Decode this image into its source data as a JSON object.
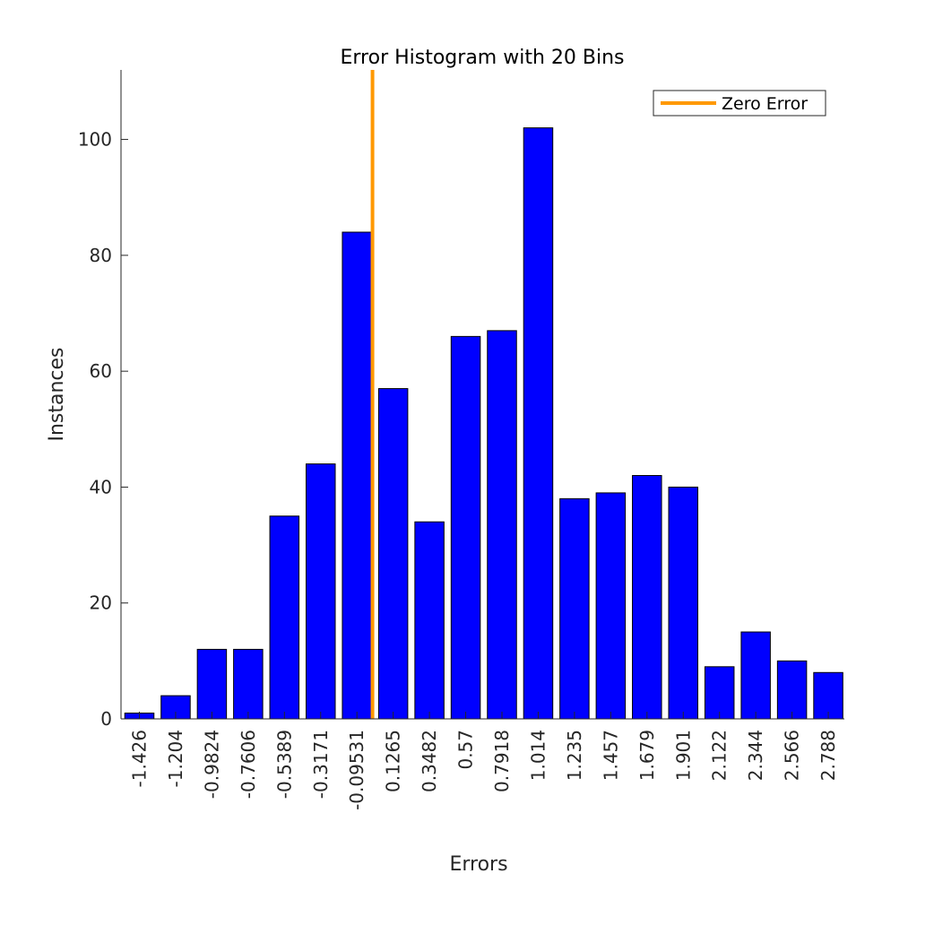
{
  "chart_data": {
    "type": "bar",
    "title": "Error Histogram with 20 Bins",
    "xlabel": "Errors",
    "ylabel": "Instances",
    "categories": [
      "-1.426",
      "-1.204",
      "-0.9824",
      "-0.7606",
      "-0.5389",
      "-0.3171",
      "-0.09531",
      "0.1265",
      "0.3482",
      "0.57",
      "0.7918",
      "1.014",
      "1.235",
      "1.457",
      "1.679",
      "1.901",
      "2.122",
      "2.344",
      "2.566",
      "2.788"
    ],
    "values": [
      1,
      4,
      12,
      12,
      35,
      44,
      84,
      57,
      34,
      66,
      67,
      102,
      38,
      39,
      42,
      40,
      9,
      15,
      10,
      8
    ],
    "ylim": [
      0,
      112
    ],
    "yticks": [
      0,
      20,
      40,
      60,
      80,
      100
    ],
    "zero_error_x": 0,
    "legend": {
      "entries": [
        "Zero Error"
      ],
      "placement": "top-right"
    },
    "grid": false,
    "colors": {
      "bar": "#0000ff",
      "bar_edge": "#000000",
      "zero_line": "#ff9900",
      "axis": "#262626"
    }
  }
}
